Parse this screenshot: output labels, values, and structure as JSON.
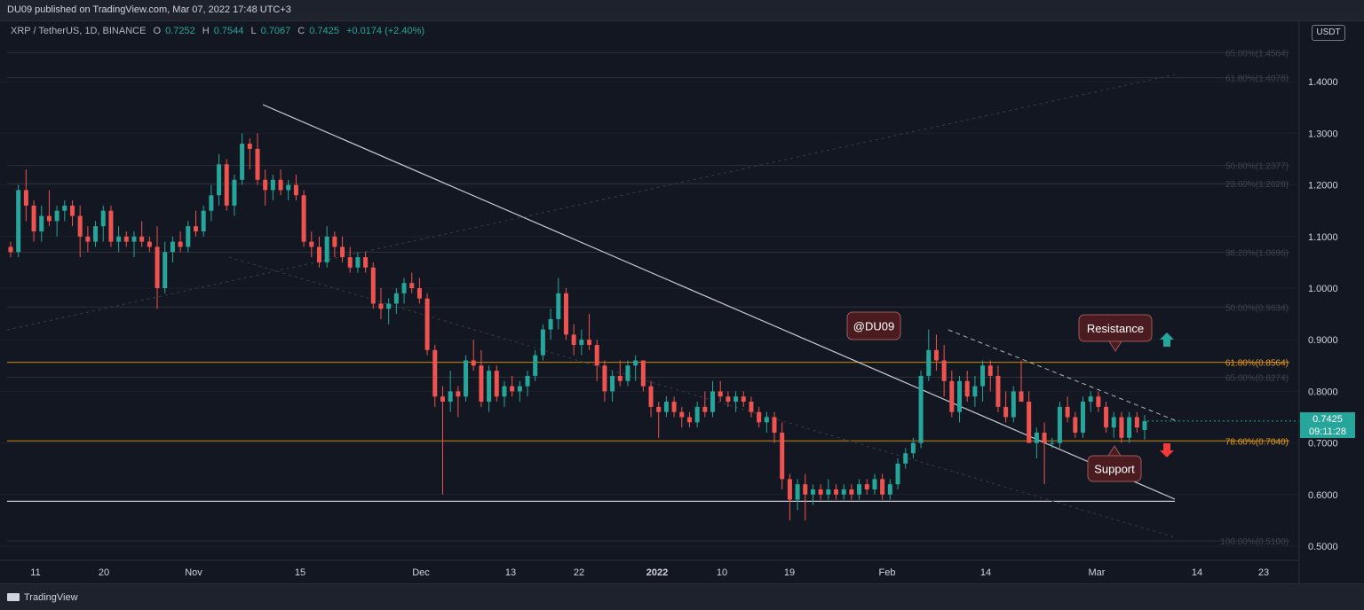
{
  "header": {
    "published": "DU09 published on TradingView.com, Mar 07, 2022 17:48 UTC+3"
  },
  "symbol": {
    "pair": "XRP / TetherUS, 1D, BINANCE",
    "o_label": "O",
    "o": "0.7252",
    "h_label": "H",
    "h": "0.7544",
    "l_label": "L",
    "l": "0.7067",
    "c_label": "C",
    "c": "0.7425",
    "change": "+0.0174 (+2.40%)"
  },
  "currency_badge": "USDT",
  "price_tag": {
    "price": "0.7425",
    "countdown": "09:11:28"
  },
  "footer": {
    "brand": "TradingView"
  },
  "annotations": {
    "author": "@DU09",
    "resistance": "Resistance",
    "support": "Support"
  },
  "colors": {
    "up": "#26a69a",
    "down": "#ef5350",
    "fib_key": "#c88a12",
    "background": "#131722",
    "label_fill": "#4a1c20"
  },
  "chart_data": {
    "type": "candlestick",
    "ylim": [
      0.45,
      1.5
    ],
    "y_ticks": [
      "0.5000",
      "0.6000",
      "0.7000",
      "0.8000",
      "0.9000",
      "1.0000",
      "1.1000",
      "1.2000",
      "1.3000",
      "1.4000"
    ],
    "x_ticks": [
      "11",
      "20",
      "Nov",
      "15",
      "Dec",
      "13",
      "22",
      "2022",
      "10",
      "19",
      "Feb",
      "14",
      "Mar",
      "14",
      "23"
    ],
    "fib_levels": [
      {
        "label": "65.00%(1.4564)",
        "value": 1.4564
      },
      {
        "label": "61.80%(1.4078)",
        "value": 1.4078
      },
      {
        "label": "50.00%(1.2377)",
        "value": 1.2377
      },
      {
        "label": "23.60%(1.2028)",
        "value": 1.2028
      },
      {
        "label": "38.20%(1.0696)",
        "value": 1.0696
      },
      {
        "label": "50.00%(0.9634)",
        "value": 0.9634
      },
      {
        "label": "61.80%(0.8564)",
        "value": 0.8564
      },
      {
        "label": "65.00%(0.8274)",
        "value": 0.8274
      },
      {
        "label": "78.60%(0.7040)",
        "value": 0.704
      },
      {
        "label": "100.00%(0.5100)",
        "value": 0.51
      }
    ],
    "key_fib_values": [
      0.8564,
      0.704
    ],
    "horizontal_support": 0.587,
    "candles": [
      [
        1.08,
        1.09,
        1.06,
        1.07
      ],
      [
        1.07,
        1.2,
        1.06,
        1.19
      ],
      [
        1.19,
        1.23,
        1.13,
        1.16
      ],
      [
        1.16,
        1.17,
        1.09,
        1.11
      ],
      [
        1.11,
        1.16,
        1.09,
        1.14
      ],
      [
        1.14,
        1.19,
        1.12,
        1.13
      ],
      [
        1.13,
        1.16,
        1.1,
        1.15
      ],
      [
        1.15,
        1.17,
        1.13,
        1.16
      ],
      [
        1.16,
        1.17,
        1.12,
        1.14
      ],
      [
        1.14,
        1.16,
        1.06,
        1.1
      ],
      [
        1.1,
        1.12,
        1.07,
        1.09
      ],
      [
        1.09,
        1.13,
        1.08,
        1.12
      ],
      [
        1.12,
        1.16,
        1.09,
        1.15
      ],
      [
        1.15,
        1.16,
        1.08,
        1.09
      ],
      [
        1.09,
        1.12,
        1.07,
        1.1
      ],
      [
        1.1,
        1.11,
        1.08,
        1.09
      ],
      [
        1.09,
        1.11,
        1.06,
        1.1
      ],
      [
        1.1,
        1.13,
        1.08,
        1.09
      ],
      [
        1.09,
        1.1,
        1.07,
        1.08
      ],
      [
        1.08,
        1.12,
        0.96,
        1.0
      ],
      [
        1.0,
        1.09,
        0.99,
        1.07
      ],
      [
        1.07,
        1.1,
        1.05,
        1.09
      ],
      [
        1.09,
        1.11,
        1.07,
        1.08
      ],
      [
        1.08,
        1.13,
        1.07,
        1.12
      ],
      [
        1.12,
        1.15,
        1.1,
        1.11
      ],
      [
        1.11,
        1.16,
        1.1,
        1.15
      ],
      [
        1.15,
        1.2,
        1.13,
        1.18
      ],
      [
        1.18,
        1.26,
        1.16,
        1.24
      ],
      [
        1.24,
        1.25,
        1.15,
        1.16
      ],
      [
        1.16,
        1.22,
        1.14,
        1.21
      ],
      [
        1.21,
        1.3,
        1.2,
        1.28
      ],
      [
        1.28,
        1.29,
        1.23,
        1.27
      ],
      [
        1.27,
        1.3,
        1.2,
        1.21
      ],
      [
        1.21,
        1.23,
        1.16,
        1.19
      ],
      [
        1.19,
        1.22,
        1.17,
        1.21
      ],
      [
        1.21,
        1.23,
        1.18,
        1.19
      ],
      [
        1.19,
        1.21,
        1.17,
        1.2
      ],
      [
        1.2,
        1.22,
        1.17,
        1.18
      ],
      [
        1.18,
        1.19,
        1.08,
        1.09
      ],
      [
        1.09,
        1.11,
        1.06,
        1.08
      ],
      [
        1.08,
        1.1,
        1.04,
        1.05
      ],
      [
        1.05,
        1.12,
        1.04,
        1.1
      ],
      [
        1.1,
        1.11,
        1.06,
        1.08
      ],
      [
        1.08,
        1.1,
        1.05,
        1.06
      ],
      [
        1.06,
        1.08,
        1.03,
        1.04
      ],
      [
        1.04,
        1.07,
        1.03,
        1.06
      ],
      [
        1.06,
        1.07,
        1.03,
        1.04
      ],
      [
        1.04,
        1.05,
        0.96,
        0.97
      ],
      [
        0.97,
        1.0,
        0.94,
        0.96
      ],
      [
        0.96,
        0.98,
        0.93,
        0.97
      ],
      [
        0.97,
        1.0,
        0.95,
        0.99
      ],
      [
        0.99,
        1.02,
        0.97,
        1.01
      ],
      [
        1.01,
        1.03,
        0.99,
        1.0
      ],
      [
        1.0,
        1.02,
        0.97,
        0.98
      ],
      [
        0.98,
        0.99,
        0.87,
        0.88
      ],
      [
        0.88,
        0.89,
        0.77,
        0.79
      ],
      [
        0.79,
        0.81,
        0.6,
        0.78
      ],
      [
        0.78,
        0.84,
        0.76,
        0.8
      ],
      [
        0.8,
        0.81,
        0.75,
        0.79
      ],
      [
        0.79,
        0.87,
        0.78,
        0.86
      ],
      [
        0.86,
        0.9,
        0.84,
        0.85
      ],
      [
        0.85,
        0.88,
        0.77,
        0.78
      ],
      [
        0.78,
        0.85,
        0.76,
        0.84
      ],
      [
        0.84,
        0.85,
        0.78,
        0.79
      ],
      [
        0.79,
        0.82,
        0.77,
        0.81
      ],
      [
        0.81,
        0.83,
        0.79,
        0.8
      ],
      [
        0.8,
        0.82,
        0.78,
        0.81
      ],
      [
        0.81,
        0.84,
        0.79,
        0.83
      ],
      [
        0.83,
        0.88,
        0.82,
        0.87
      ],
      [
        0.87,
        0.93,
        0.86,
        0.92
      ],
      [
        0.92,
        0.96,
        0.9,
        0.94
      ],
      [
        0.94,
        1.02,
        0.92,
        0.99
      ],
      [
        0.99,
        1.0,
        0.9,
        0.91
      ],
      [
        0.91,
        0.93,
        0.87,
        0.89
      ],
      [
        0.89,
        0.92,
        0.87,
        0.9
      ],
      [
        0.9,
        0.95,
        0.88,
        0.89
      ],
      [
        0.89,
        0.9,
        0.82,
        0.85
      ],
      [
        0.85,
        0.86,
        0.78,
        0.8
      ],
      [
        0.8,
        0.84,
        0.78,
        0.83
      ],
      [
        0.83,
        0.86,
        0.81,
        0.82
      ],
      [
        0.82,
        0.86,
        0.81,
        0.85
      ],
      [
        0.85,
        0.87,
        0.82,
        0.86
      ],
      [
        0.86,
        0.86,
        0.8,
        0.81
      ],
      [
        0.81,
        0.82,
        0.75,
        0.77
      ],
      [
        0.77,
        0.78,
        0.71,
        0.76
      ],
      [
        0.76,
        0.79,
        0.75,
        0.78
      ],
      [
        0.78,
        0.79,
        0.75,
        0.76
      ],
      [
        0.76,
        0.77,
        0.73,
        0.75
      ],
      [
        0.75,
        0.76,
        0.73,
        0.74
      ],
      [
        0.74,
        0.78,
        0.73,
        0.77
      ],
      [
        0.77,
        0.8,
        0.75,
        0.76
      ],
      [
        0.76,
        0.82,
        0.75,
        0.8
      ],
      [
        0.8,
        0.82,
        0.78,
        0.79
      ],
      [
        0.79,
        0.8,
        0.77,
        0.78
      ],
      [
        0.78,
        0.8,
        0.76,
        0.79
      ],
      [
        0.79,
        0.8,
        0.77,
        0.78
      ],
      [
        0.78,
        0.79,
        0.75,
        0.76
      ],
      [
        0.76,
        0.77,
        0.73,
        0.74
      ],
      [
        0.74,
        0.76,
        0.72,
        0.75
      ],
      [
        0.75,
        0.76,
        0.7,
        0.72
      ],
      [
        0.72,
        0.74,
        0.61,
        0.63
      ],
      [
        0.63,
        0.64,
        0.55,
        0.59
      ],
      [
        0.59,
        0.63,
        0.57,
        0.62
      ],
      [
        0.62,
        0.64,
        0.55,
        0.6
      ],
      [
        0.6,
        0.62,
        0.58,
        0.61
      ],
      [
        0.61,
        0.62,
        0.59,
        0.6
      ],
      [
        0.6,
        0.63,
        0.59,
        0.61
      ],
      [
        0.61,
        0.62,
        0.59,
        0.6
      ],
      [
        0.6,
        0.62,
        0.59,
        0.61
      ],
      [
        0.61,
        0.62,
        0.59,
        0.6
      ],
      [
        0.6,
        0.63,
        0.59,
        0.62
      ],
      [
        0.62,
        0.63,
        0.6,
        0.61
      ],
      [
        0.61,
        0.64,
        0.6,
        0.63
      ],
      [
        0.63,
        0.64,
        0.59,
        0.6
      ],
      [
        0.6,
        0.63,
        0.59,
        0.62
      ],
      [
        0.62,
        0.67,
        0.61,
        0.66
      ],
      [
        0.66,
        0.69,
        0.65,
        0.68
      ],
      [
        0.68,
        0.71,
        0.67,
        0.7
      ],
      [
        0.7,
        0.84,
        0.69,
        0.83
      ],
      [
        0.83,
        0.92,
        0.82,
        0.88
      ],
      [
        0.88,
        0.91,
        0.84,
        0.86
      ],
      [
        0.86,
        0.89,
        0.79,
        0.82
      ],
      [
        0.82,
        0.84,
        0.75,
        0.76
      ],
      [
        0.76,
        0.83,
        0.74,
        0.82
      ],
      [
        0.82,
        0.84,
        0.78,
        0.79
      ],
      [
        0.79,
        0.83,
        0.77,
        0.81
      ],
      [
        0.81,
        0.86,
        0.78,
        0.85
      ],
      [
        0.85,
        0.86,
        0.8,
        0.83
      ],
      [
        0.83,
        0.85,
        0.76,
        0.77
      ],
      [
        0.77,
        0.8,
        0.74,
        0.75
      ],
      [
        0.75,
        0.81,
        0.74,
        0.8
      ],
      [
        0.8,
        0.86,
        0.79,
        0.78
      ],
      [
        0.78,
        0.8,
        0.71,
        0.7
      ],
      [
        0.7,
        0.73,
        0.67,
        0.72
      ],
      [
        0.72,
        0.74,
        0.62,
        0.7
      ],
      [
        0.7,
        0.71,
        0.69,
        0.7
      ],
      [
        0.7,
        0.78,
        0.69,
        0.77
      ],
      [
        0.77,
        0.79,
        0.74,
        0.75
      ],
      [
        0.75,
        0.76,
        0.71,
        0.72
      ],
      [
        0.72,
        0.79,
        0.71,
        0.78
      ],
      [
        0.78,
        0.8,
        0.76,
        0.79
      ],
      [
        0.79,
        0.8,
        0.76,
        0.77
      ],
      [
        0.77,
        0.78,
        0.72,
        0.73
      ],
      [
        0.73,
        0.76,
        0.71,
        0.75
      ],
      [
        0.75,
        0.76,
        0.7,
        0.71
      ],
      [
        0.71,
        0.76,
        0.7,
        0.75
      ],
      [
        0.75,
        0.76,
        0.72,
        0.73
      ],
      [
        0.7252,
        0.7544,
        0.7067,
        0.7425
      ]
    ]
  }
}
